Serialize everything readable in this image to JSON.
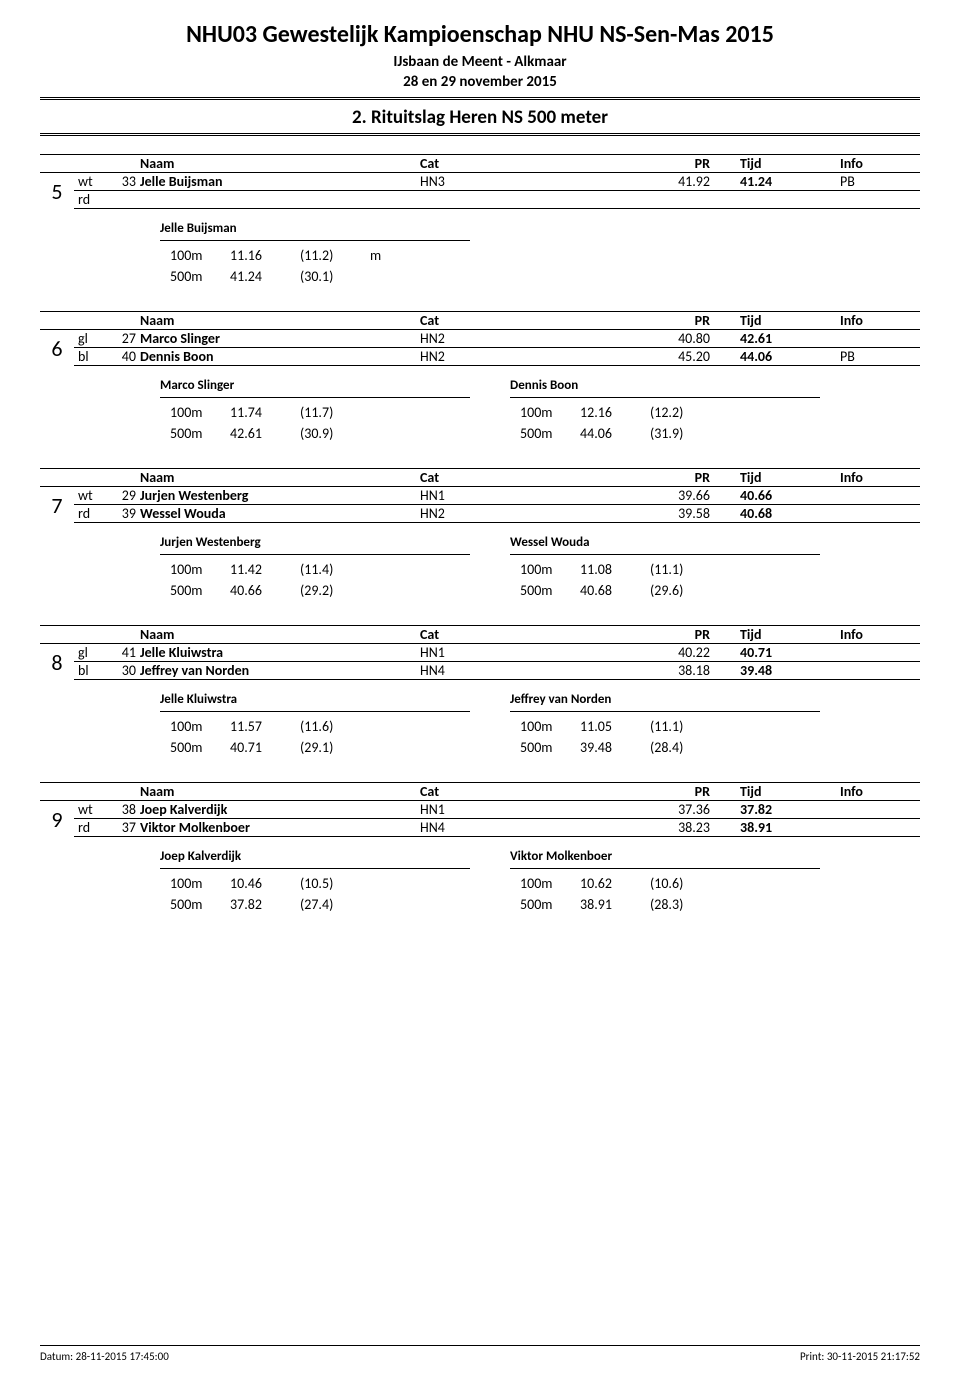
{
  "header": {
    "title": "NHU03 Gewestelijk Kampioenschap NHU NS-Sen-Mas 2015",
    "venue": "IJsbaan de Meent - Alkmaar",
    "dates": "28 en 29 november 2015",
    "section": "2. Rituitslag Heren NS 500 meter"
  },
  "columns": {
    "naam": "Naam",
    "cat": "Cat",
    "pr": "PR",
    "tijd": "Tijd",
    "info": "Info"
  },
  "heats": [
    {
      "num": "5",
      "skaters": [
        {
          "lane": "wt",
          "bib": "33",
          "name": "Jelle Buijsman",
          "cat": "HN3",
          "pr": "41.92",
          "tijd": "41.24",
          "info": "PB"
        },
        {
          "lane": "rd",
          "bib": "",
          "name": "",
          "cat": "",
          "pr": "",
          "tijd": "",
          "info": ""
        }
      ],
      "splits": [
        {
          "name": "Jelle Buijsman",
          "rows": [
            {
              "dist": "100m",
              "time": "11.16",
              "diff": "(11.2)",
              "extra": "m"
            },
            {
              "dist": "500m",
              "time": "41.24",
              "diff": "(30.1)",
              "extra": ""
            }
          ]
        },
        {
          "name": "",
          "rows": []
        }
      ]
    },
    {
      "num": "6",
      "skaters": [
        {
          "lane": "gl",
          "bib": "27",
          "name": "Marco Slinger",
          "cat": "HN2",
          "pr": "40.80",
          "tijd": "42.61",
          "info": ""
        },
        {
          "lane": "bl",
          "bib": "40",
          "name": "Dennis Boon",
          "cat": "HN2",
          "pr": "45.20",
          "tijd": "44.06",
          "info": "PB"
        }
      ],
      "splits": [
        {
          "name": "Marco Slinger",
          "rows": [
            {
              "dist": "100m",
              "time": "11.74",
              "diff": "(11.7)",
              "extra": ""
            },
            {
              "dist": "500m",
              "time": "42.61",
              "diff": "(30.9)",
              "extra": ""
            }
          ]
        },
        {
          "name": "Dennis Boon",
          "rows": [
            {
              "dist": "100m",
              "time": "12.16",
              "diff": "(12.2)",
              "extra": ""
            },
            {
              "dist": "500m",
              "time": "44.06",
              "diff": "(31.9)",
              "extra": ""
            }
          ]
        }
      ]
    },
    {
      "num": "7",
      "skaters": [
        {
          "lane": "wt",
          "bib": "29",
          "name": "Jurjen Westenberg",
          "cat": "HN1",
          "pr": "39.66",
          "tijd": "40.66",
          "info": ""
        },
        {
          "lane": "rd",
          "bib": "39",
          "name": "Wessel Wouda",
          "cat": "HN2",
          "pr": "39.58",
          "tijd": "40.68",
          "info": ""
        }
      ],
      "splits": [
        {
          "name": "Jurjen Westenberg",
          "rows": [
            {
              "dist": "100m",
              "time": "11.42",
              "diff": "(11.4)",
              "extra": ""
            },
            {
              "dist": "500m",
              "time": "40.66",
              "diff": "(29.2)",
              "extra": ""
            }
          ]
        },
        {
          "name": "Wessel Wouda",
          "rows": [
            {
              "dist": "100m",
              "time": "11.08",
              "diff": "(11.1)",
              "extra": ""
            },
            {
              "dist": "500m",
              "time": "40.68",
              "diff": "(29.6)",
              "extra": ""
            }
          ]
        }
      ]
    },
    {
      "num": "8",
      "skaters": [
        {
          "lane": "gl",
          "bib": "41",
          "name": "Jelle Kluiwstra",
          "cat": "HN1",
          "pr": "40.22",
          "tijd": "40.71",
          "info": ""
        },
        {
          "lane": "bl",
          "bib": "30",
          "name": "Jeffrey van Norden",
          "cat": "HN4",
          "pr": "38.18",
          "tijd": "39.48",
          "info": ""
        }
      ],
      "splits": [
        {
          "name": "Jelle Kluiwstra",
          "rows": [
            {
              "dist": "100m",
              "time": "11.57",
              "diff": "(11.6)",
              "extra": ""
            },
            {
              "dist": "500m",
              "time": "40.71",
              "diff": "(29.1)",
              "extra": ""
            }
          ]
        },
        {
          "name": "Jeffrey van Norden",
          "rows": [
            {
              "dist": "100m",
              "time": "11.05",
              "diff": "(11.1)",
              "extra": ""
            },
            {
              "dist": "500m",
              "time": "39.48",
              "diff": "(28.4)",
              "extra": ""
            }
          ]
        }
      ]
    },
    {
      "num": "9",
      "skaters": [
        {
          "lane": "wt",
          "bib": "38",
          "name": "Joep Kalverdijk",
          "cat": "HN1",
          "pr": "37.36",
          "tijd": "37.82",
          "info": ""
        },
        {
          "lane": "rd",
          "bib": "37",
          "name": "Viktor Molkenboer",
          "cat": "HN4",
          "pr": "38.23",
          "tijd": "38.91",
          "info": ""
        }
      ],
      "splits": [
        {
          "name": "Joep Kalverdijk",
          "rows": [
            {
              "dist": "100m",
              "time": "10.46",
              "diff": "(10.5)",
              "extra": ""
            },
            {
              "dist": "500m",
              "time": "37.82",
              "diff": "(27.4)",
              "extra": ""
            }
          ]
        },
        {
          "name": "Viktor Molkenboer",
          "rows": [
            {
              "dist": "100m",
              "time": "10.62",
              "diff": "(10.6)",
              "extra": ""
            },
            {
              "dist": "500m",
              "time": "38.91",
              "diff": "(28.3)",
              "extra": ""
            }
          ]
        }
      ]
    }
  ],
  "footer": {
    "left": "Datum: 28-11-2015 17:45:00",
    "right": "Print: 30-11-2015 21:17:52"
  }
}
